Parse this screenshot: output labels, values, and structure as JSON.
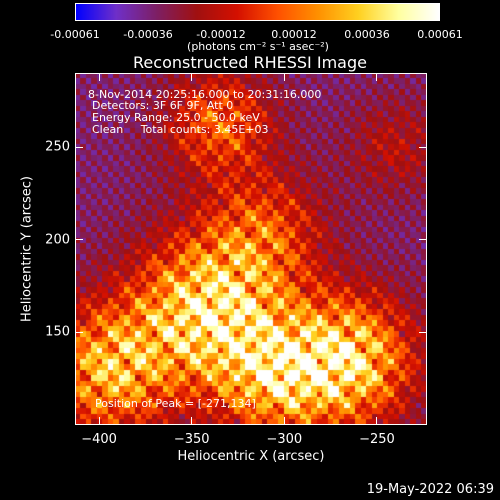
{
  "colors": {
    "colormap": [
      "#0000ff",
      "#6f2fc8",
      "#7d1f64",
      "#a01010",
      "#d41000",
      "#ff5000",
      "#ff9000",
      "#ffd020",
      "#ffffa0",
      "#ffffff"
    ],
    "background": "#000000",
    "foreground": "#ffffff"
  },
  "colorbar": {
    "ticks": [
      "-0.00061",
      "-0.00036",
      "-0.00012",
      "0.00012",
      "0.00036",
      "0.00061"
    ],
    "units": "(photons cm⁻² s⁻¹ asec⁻²)",
    "range": [
      -0.00061,
      0.00061
    ]
  },
  "timestamp": "19-May-2022 06:39",
  "chart_data": {
    "type": "heatmap",
    "title": "Reconstructed RHESSI Image",
    "xlabel": "Heliocentric X (arcsec)",
    "ylabel": "Heliocentric Y (arcsec)",
    "xlim": [
      -413,
      -223
    ],
    "ylim": [
      100,
      290
    ],
    "xticks": [
      -400,
      -350,
      -300,
      -250
    ],
    "yticks": [
      150,
      200,
      250
    ],
    "xtick_labels": [
      "−400",
      "−350",
      "−300",
      "−250"
    ],
    "ytick_labels": [
      "150",
      "200",
      "250"
    ],
    "annotations": {
      "time_range": "8-Nov-2014 20:25:16.000 to 20:31:16.000",
      "detectors": "Detectors: 3F 6F 9F, Att 0",
      "energy": "Energy Range: 25.0 - 50.0 keV",
      "method": "Clean     Total counts: 3.45E+03",
      "peak": "Position of Peak = [-271,134]"
    },
    "peak_position": [
      -271,
      134
    ],
    "sources": [
      {
        "x": -340,
        "y": 162,
        "amp": 1.0,
        "sigma": 28
      },
      {
        "x": -265,
        "y": 135,
        "amp": 0.95,
        "sigma": 24
      },
      {
        "x": -395,
        "y": 130,
        "amp": 0.8,
        "sigma": 24
      },
      {
        "x": -305,
        "y": 125,
        "amp": 0.7,
        "sigma": 22
      },
      {
        "x": -335,
        "y": 262,
        "amp": 0.55,
        "sigma": 20
      },
      {
        "x": -310,
        "y": 205,
        "amp": 0.45,
        "sigma": 22
      },
      {
        "x": -240,
        "y": 250,
        "amp": 0.25,
        "sigma": 18
      }
    ]
  }
}
